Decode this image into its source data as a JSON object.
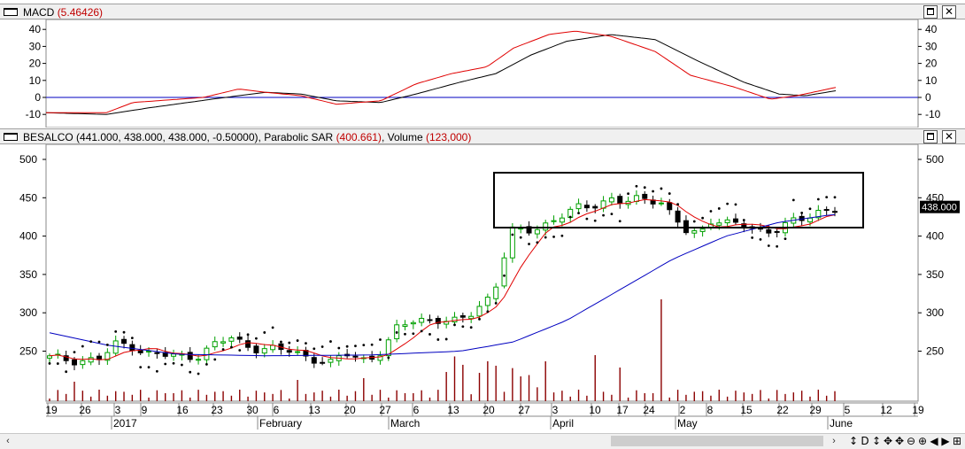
{
  "macd_pane": {
    "title_name": "MACD",
    "title_value": "(5.46426)",
    "y_ticks": [
      "40",
      "30",
      "20",
      "10",
      "0",
      "-10"
    ],
    "y_values": [
      40,
      30,
      20,
      10,
      0,
      -10
    ]
  },
  "price_pane": {
    "title_prefix": "BESALCO (441.000, 438.000, 438.000, -0.50000), Parabolic SAR ",
    "title_sar": "(400.661)",
    "title_mid": ", Volume ",
    "title_vol": "(123,000)",
    "y_ticks": [
      "500",
      "450",
      "400",
      "350",
      "300",
      "250"
    ],
    "y_values": [
      500,
      450,
      400,
      350,
      300,
      250
    ],
    "last_price_label": "438.000"
  },
  "x_axis": {
    "day_ticks": [
      "19",
      "26",
      "3",
      "9",
      "16",
      "23",
      "30",
      "6",
      "13",
      "20",
      "27",
      "6",
      "13",
      "20",
      "27",
      "3",
      "10",
      "17",
      "24",
      "2",
      "8",
      "15",
      "22",
      "29",
      "5",
      "12",
      "19"
    ],
    "months": [
      "2017",
      "February",
      "March",
      "April",
      "May",
      "June"
    ]
  },
  "colors": {
    "up": "#00a000",
    "down": "#000000",
    "ma_fast": "#e00000",
    "ma_slow": "#0000c0",
    "volume": "#8b0000",
    "macd_signal": "#000000",
    "macd_line": "#e00000",
    "zero_line": "#0000c0"
  },
  "window_buttons": {
    "maximize_icon": "maximize-icon",
    "close_label": "✕"
  },
  "scroll": {
    "left_arrow": "‹",
    "right_arrow": "›",
    "tools": [
      "↕",
      "D",
      "↕",
      "✥",
      "✥",
      "⊖",
      "⊕",
      "◀",
      "▶",
      "⊞"
    ]
  }
}
